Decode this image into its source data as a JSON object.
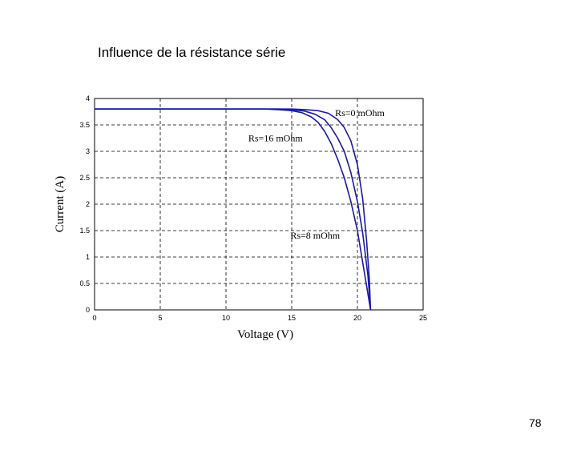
{
  "slide": {
    "title": "Influence de la résistance série",
    "page_number": "78"
  },
  "chart_data": {
    "type": "line",
    "xlabel": "Voltage (V)",
    "ylabel": "Current (A)",
    "xlim": [
      0,
      25
    ],
    "ylim": [
      0,
      4
    ],
    "xticks": [
      "0",
      "5",
      "10",
      "15",
      "20",
      "25"
    ],
    "yticks": [
      "0",
      "0.5",
      "1",
      "1.5",
      "2",
      "2.5",
      "3",
      "3.5",
      "4"
    ],
    "grid": true,
    "series_color": "#1a1aa0",
    "series": [
      {
        "name": "Rs=0 mOhm",
        "x": [
          0,
          14,
          15,
          16,
          17,
          17.8,
          18.5,
          19,
          19.5,
          20,
          20.4,
          20.7,
          20.9,
          21
        ],
        "y": [
          3.8,
          3.8,
          3.8,
          3.79,
          3.77,
          3.72,
          3.6,
          3.45,
          3.2,
          2.75,
          2.1,
          1.3,
          0.6,
          0
        ]
      },
      {
        "name": "Rs=8 mOhm",
        "x": [
          0,
          13,
          14,
          15,
          16,
          16.8,
          17.5,
          18,
          18.5,
          19,
          19.5,
          20,
          20.4,
          20.8,
          21
        ],
        "y": [
          3.8,
          3.8,
          3.8,
          3.79,
          3.76,
          3.7,
          3.6,
          3.45,
          3.25,
          3,
          2.6,
          2.05,
          1.45,
          0.65,
          0
        ]
      },
      {
        "name": "Rs=16 mOhm",
        "x": [
          0,
          12,
          13,
          14,
          15,
          15.8,
          16.5,
          17,
          17.5,
          18,
          18.5,
          19,
          19.5,
          20,
          20.5,
          21
        ],
        "y": [
          3.8,
          3.8,
          3.8,
          3.79,
          3.77,
          3.73,
          3.65,
          3.55,
          3.38,
          3.15,
          2.85,
          2.5,
          2.05,
          1.5,
          0.75,
          0
        ]
      }
    ],
    "annotations": [
      {
        "text": "Rs=0 mOhm",
        "x": 18.3,
        "y": 3.67
      },
      {
        "text": "Rs=16 mOhm",
        "x": 11.7,
        "y": 3.19
      },
      {
        "text": "Rs=8 mOhm",
        "x": 14.9,
        "y": 1.35
      }
    ]
  }
}
